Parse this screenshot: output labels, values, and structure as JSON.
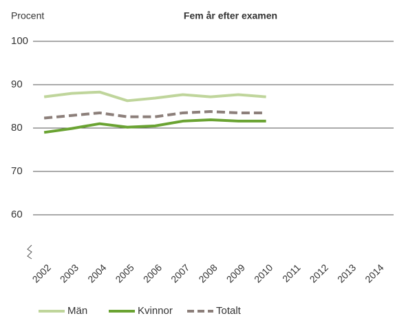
{
  "chart_data": {
    "type": "line",
    "title": "Fem år efter examen",
    "y_label": "Procent",
    "categories": [
      "2002",
      "2003",
      "2004",
      "2005",
      "2006",
      "2007",
      "2008",
      "2009",
      "2010",
      "2011",
      "2012",
      "2013",
      "2014"
    ],
    "series": [
      {
        "name": "Män",
        "color": "#bfd59b",
        "dash": false,
        "values": [
          87.2,
          88.0,
          88.3,
          86.3,
          86.9,
          87.7,
          87.2,
          87.7,
          87.2,
          null,
          null,
          null,
          null
        ]
      },
      {
        "name": "Kvinnor",
        "color": "#6aa332",
        "dash": false,
        "values": [
          79.0,
          79.9,
          81.0,
          80.2,
          80.5,
          81.6,
          81.9,
          81.6,
          81.6,
          null,
          null,
          null,
          null
        ]
      },
      {
        "name": "Totalt",
        "color": "#8c7f7a",
        "dash": true,
        "values": [
          82.3,
          82.9,
          83.5,
          82.6,
          82.6,
          83.5,
          83.8,
          83.5,
          83.5,
          null,
          null,
          null,
          null
        ]
      }
    ],
    "ylim": [
      50,
      100
    ],
    "yticks": [
      60,
      70,
      80,
      90,
      100
    ],
    "grid": true
  }
}
